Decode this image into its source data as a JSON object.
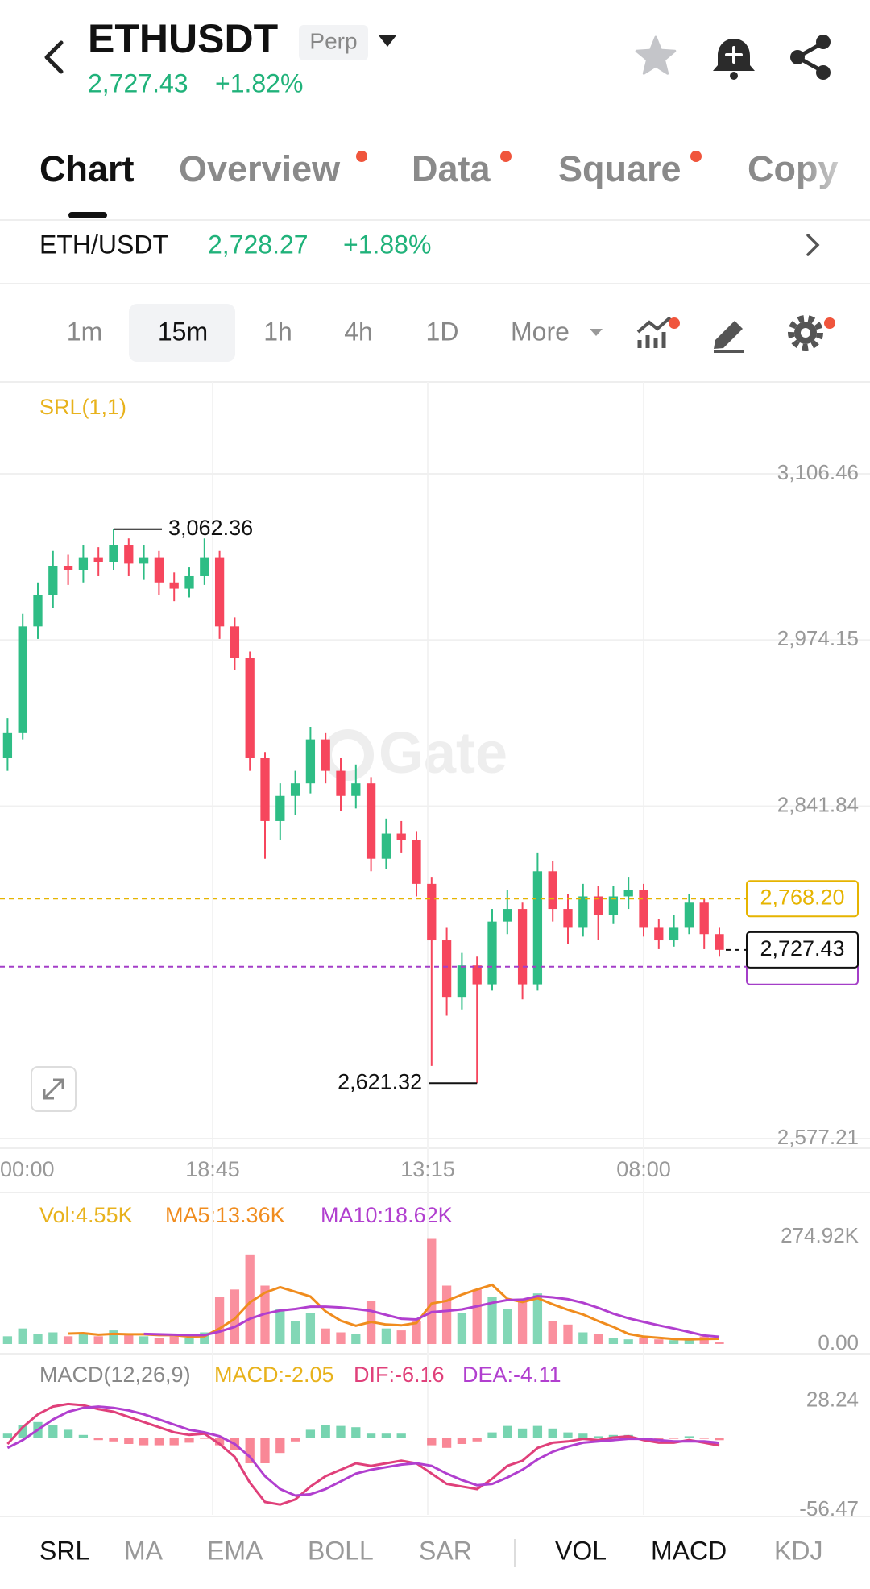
{
  "header": {
    "symbol": "ETHUSDT",
    "badge": "Perp",
    "price": "2,727.43",
    "change": "+1.82%"
  },
  "tabs": [
    "Chart",
    "Overview",
    "Data",
    "Square",
    "Copy"
  ],
  "ticker": {
    "pair": "ETH/USDT",
    "price": "2,728.27",
    "change": "+1.88%"
  },
  "intervals": [
    "1m",
    "15m",
    "1h",
    "4h",
    "1D",
    "More"
  ],
  "indicator_tabs": [
    "SRL",
    "MA",
    "EMA",
    "BOLL",
    "SAR"
  ],
  "sub_tabs": [
    "VOL",
    "MACD",
    "KDJ"
  ],
  "chart_data": [
    {
      "type": "candlestick",
      "title": "SRL(1,1)",
      "watermark": "Gate",
      "colors": {
        "up": "#2ebd85",
        "down": "#f6465d"
      },
      "open": [
        2880,
        2900,
        2985,
        3010,
        3033,
        3030,
        3040,
        3036,
        3050,
        3035,
        3040,
        3020,
        3015,
        3025,
        3040,
        2985,
        2960,
        2880,
        2830,
        2850,
        2860,
        2895,
        2870,
        2850,
        2860,
        2800,
        2820,
        2815,
        2780,
        2735,
        2690,
        2715,
        2700,
        2750,
        2760,
        2700,
        2790,
        2760,
        2745,
        2770,
        2755,
        2770,
        2775,
        2745,
        2735,
        2745,
        2765,
        2740
      ],
      "high": [
        2912,
        2995,
        3020,
        3045,
        3042,
        3050,
        3048,
        3062.36,
        3055,
        3050,
        3045,
        3028,
        3032,
        3055,
        3045,
        2992,
        2965,
        2885,
        2860,
        2870,
        2905,
        2900,
        2880,
        2875,
        2865,
        2832,
        2830,
        2822,
        2785,
        2745,
        2725,
        2722,
        2760,
        2775,
        2765,
        2805,
        2798,
        2772,
        2780,
        2778,
        2778,
        2785,
        2780,
        2752,
        2755,
        2772,
        2768,
        2745
      ],
      "low": [
        2870,
        2895,
        2975,
        3000,
        3018,
        3020,
        3025,
        3030,
        3025,
        3022,
        3010,
        3005,
        3008,
        3018,
        2975,
        2950,
        2870,
        2800,
        2815,
        2835,
        2852,
        2860,
        2838,
        2840,
        2790,
        2792,
        2805,
        2770,
        2635,
        2675,
        2680,
        2621.32,
        2695,
        2740,
        2688,
        2695,
        2750,
        2732,
        2738,
        2735,
        2748,
        2760,
        2738,
        2728,
        2730,
        2740,
        2728,
        2722
      ],
      "close": [
        2900,
        2985,
        3010,
        3033,
        3030,
        3040,
        3036,
        3050,
        3035,
        3040,
        3020,
        3015,
        3025,
        3040,
        2985,
        2960,
        2880,
        2830,
        2850,
        2860,
        2895,
        2870,
        2850,
        2860,
        2800,
        2820,
        2815,
        2780,
        2735,
        2690,
        2715,
        2700,
        2750,
        2760,
        2700,
        2790,
        2760,
        2745,
        2770,
        2755,
        2770,
        2775,
        2745,
        2735,
        2745,
        2765,
        2740,
        2727.43
      ],
      "x_labels": [
        "00:00",
        "18:45",
        "13:15",
        "08:00"
      ],
      "ylim": [
        2569.5,
        3179.6
      ],
      "yticks": [
        {
          "value": 2577.21,
          "label": "2,577.21"
        },
        {
          "value": 2841.84,
          "label": "2,841.84"
        },
        {
          "value": 2974.15,
          "label": "2,974.15"
        },
        {
          "value": 3106.46,
          "label": "3,106.46"
        }
      ],
      "grid": true,
      "annotations": [
        {
          "value": 3062.36,
          "label": "3,062.36"
        },
        {
          "value": 2621.32,
          "label": "2,621.32"
        }
      ],
      "ref_lines": [
        {
          "value": 2768.2,
          "label": "2,768.20",
          "color": "#e6b400"
        },
        {
          "value": 2714,
          "color": "#a43ec8"
        }
      ],
      "last_price": {
        "value": 2727.43,
        "label": "2,727.43"
      }
    },
    {
      "type": "bar",
      "label": "Vol:4.55K",
      "color": "#e8b21c",
      "values": [
        20,
        40,
        25,
        30,
        20,
        25,
        20,
        35,
        25,
        20,
        15,
        20,
        15,
        30,
        120,
        140,
        230,
        150,
        90,
        60,
        80,
        40,
        30,
        25,
        110,
        40,
        35,
        60,
        270,
        150,
        80,
        140,
        120,
        90,
        110,
        130,
        60,
        50,
        30,
        25,
        15,
        12,
        15,
        12,
        10,
        10,
        20,
        4.55
      ],
      "series": [
        {
          "name": "MA5:13.36K",
          "color": "#f08c1e",
          "values": [
            null,
            null,
            null,
            null,
            27,
            28,
            24,
            26,
            25,
            25,
            23,
            23,
            19,
            20,
            40,
            65,
            107,
            132,
            146,
            134,
            122,
            84,
            60,
            47,
            57,
            50,
            48,
            54,
            104,
            111,
            127,
            140,
            152,
            116,
            108,
            118,
            102,
            88,
            76,
            59,
            44,
            26,
            19,
            16,
            13,
            12,
            13,
            13.36
          ]
        },
        {
          "name": "MA10:18.62K",
          "color": "#b13fcf",
          "values": [
            null,
            null,
            null,
            null,
            null,
            null,
            null,
            null,
            null,
            26,
            25,
            24,
            23,
            23,
            32,
            44,
            65,
            78,
            86,
            90,
            96,
            96,
            94,
            90,
            85,
            75,
            65,
            63,
            82,
            85,
            89,
            97,
            106,
            113,
            114,
            123,
            120,
            115,
            106,
            93,
            78,
            66,
            57,
            48,
            40,
            31,
            22,
            18.62
          ]
        }
      ],
      "ylim": [
        0,
        300
      ],
      "yticks": [
        {
          "value": 0,
          "label": "0.00"
        },
        {
          "value": 274.92,
          "label": "274.92K"
        }
      ]
    },
    {
      "type": "macd",
      "title": "MACD(12,26,9)",
      "label": "MACD:-2.05",
      "label_color": "#e8b21c",
      "colors": {
        "up": "#2ebd85",
        "down": "#f6465d"
      },
      "values": [
        3,
        10,
        12,
        10,
        6,
        2,
        -2,
        -3,
        -5,
        -6,
        -6,
        -6,
        -4,
        -1,
        -6,
        -10,
        -20,
        -20,
        -12,
        -3,
        6,
        10,
        9,
        8,
        3,
        3,
        3,
        0,
        -6,
        -8,
        -5,
        -3,
        4,
        9,
        7,
        9,
        7,
        4,
        3,
        1,
        2,
        2,
        -1,
        -2,
        -1,
        1,
        -1,
        -2.05
      ],
      "series": [
        {
          "name": "DIF:-6.16",
          "color": "#e0407a",
          "values": [
            -5,
            8,
            18,
            24,
            26,
            25,
            22,
            20,
            16,
            12,
            8,
            4,
            2,
            3,
            -5,
            -15,
            -35,
            -50,
            -52,
            -48,
            -38,
            -30,
            -25,
            -20,
            -22,
            -20,
            -18,
            -20,
            -28,
            -36,
            -38,
            -40,
            -32,
            -22,
            -18,
            -8,
            -4,
            -3,
            -1,
            -2,
            0,
            1,
            -2,
            -4,
            -4,
            -2,
            -4,
            -6.16
          ]
        },
        {
          "name": "DEA:-4.11",
          "color": "#b13fcf",
          "values": [
            -8,
            -2,
            6,
            14,
            20,
            23,
            24,
            23,
            21,
            18,
            14,
            10,
            6,
            4,
            1,
            -5,
            -15,
            -30,
            -40,
            -45,
            -44,
            -40,
            -34,
            -28,
            -25,
            -23,
            -21,
            -20,
            -22,
            -28,
            -33,
            -37,
            -36,
            -31,
            -25,
            -17,
            -11,
            -7,
            -4,
            -3,
            -2,
            -1,
            -1,
            -2,
            -3,
            -3,
            -3,
            -4.11
          ]
        }
      ],
      "ylim": [
        -60,
        40
      ],
      "yticks": [
        -56.47,
        28.24
      ]
    }
  ]
}
